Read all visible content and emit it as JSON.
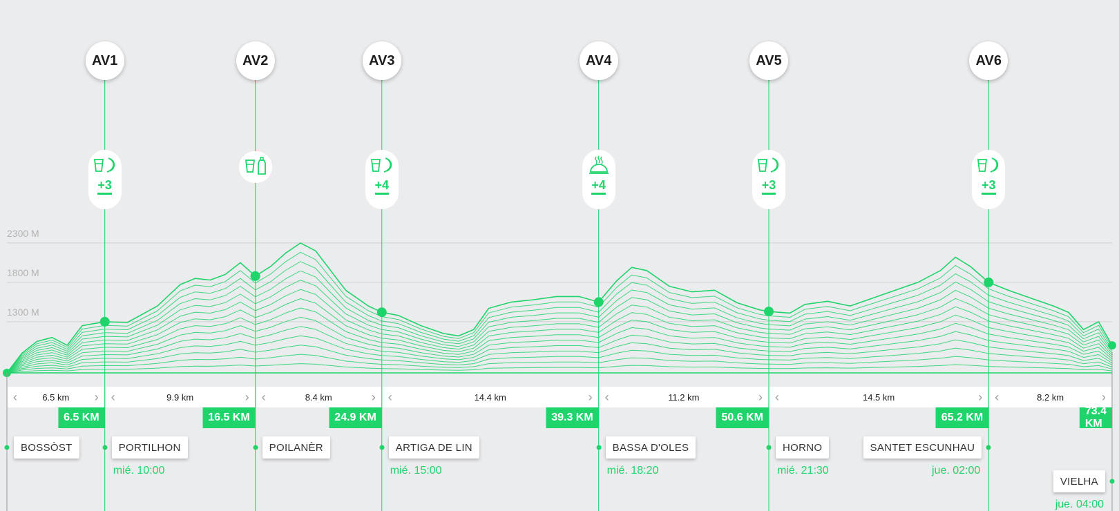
{
  "chart_data": {
    "type": "area",
    "y_ticks": [
      "2300 M",
      "1800 M",
      "1300 M"
    ],
    "y_tick_values": [
      2300,
      1800,
      1300
    ],
    "x_unit": "km",
    "x_max": 73.4,
    "profile_km": [
      0,
      1,
      2,
      3,
      4,
      5,
      6.5,
      8,
      10,
      11.5,
      12.5,
      13.5,
      14.5,
      15.5,
      16.5,
      17.5,
      18.5,
      19.5,
      20.5,
      21.5,
      22.5,
      24,
      24.9,
      26,
      27.5,
      29,
      30,
      31,
      32,
      33.5,
      35,
      36.5,
      38,
      39.3,
      40.5,
      41.5,
      42.5,
      44,
      45.5,
      47,
      48.5,
      50,
      50.6,
      52,
      53,
      54.5,
      56,
      57.5,
      59,
      60.5,
      62,
      63,
      64,
      65.2,
      66.5,
      68,
      69.5,
      70.5,
      71.5,
      72.5,
      73.4
    ],
    "profile_elev": [
      650,
      900,
      1050,
      1100,
      1000,
      1250,
      1300,
      1290,
      1500,
      1770,
      1850,
      1830,
      1900,
      2050,
      1880,
      2000,
      2170,
      2300,
      2200,
      1950,
      1700,
      1500,
      1420,
      1380,
      1250,
      1150,
      1120,
      1200,
      1470,
      1550,
      1580,
      1620,
      1620,
      1550,
      1820,
      1990,
      1950,
      1750,
      1680,
      1700,
      1540,
      1450,
      1430,
      1410,
      1520,
      1560,
      1500,
      1600,
      1700,
      1800,
      1950,
      2120,
      2000,
      1800,
      1700,
      1600,
      1500,
      1420,
      1200,
      1300,
      1000
    ],
    "aid_stations": [
      {
        "id": "AV1",
        "km": 6.5,
        "elev": 1300,
        "bonus": "+3",
        "icons": [
          "drink-icon",
          "banana-icon"
        ]
      },
      {
        "id": "AV2",
        "km": 16.5,
        "elev": 1880,
        "bonus": "",
        "icons": [
          "drink-icon",
          "bottle-icon"
        ]
      },
      {
        "id": "AV3",
        "km": 24.9,
        "elev": 1420,
        "bonus": "+4",
        "icons": [
          "drink-icon",
          "banana-icon"
        ]
      },
      {
        "id": "AV4",
        "km": 39.3,
        "elev": 1550,
        "bonus": "+4",
        "icons": [
          "hot-meal-icon"
        ]
      },
      {
        "id": "AV5",
        "km": 50.6,
        "elev": 1430,
        "bonus": "+3",
        "icons": [
          "drink-icon",
          "banana-icon"
        ]
      },
      {
        "id": "AV6",
        "km": 65.2,
        "elev": 1800,
        "bonus": "+3",
        "icons": [
          "drink-icon",
          "banana-icon"
        ]
      }
    ],
    "segments": [
      {
        "label": "6.5 km",
        "from": 0,
        "to": 6.5
      },
      {
        "label": "9.9 km",
        "from": 6.5,
        "to": 16.5
      },
      {
        "label": "8.4 km",
        "from": 16.5,
        "to": 24.9
      },
      {
        "label": "14.4 km",
        "from": 24.9,
        "to": 39.3
      },
      {
        "label": "11.2 km",
        "from": 39.3,
        "to": 50.6
      },
      {
        "label": "14.5 km",
        "from": 50.6,
        "to": 65.2
      },
      {
        "label": "8.2 km",
        "from": 65.2,
        "to": 73.4
      }
    ],
    "km_marks": [
      {
        "label": "6.5 KM",
        "km": 6.5
      },
      {
        "label": "16.5 KM",
        "km": 16.5
      },
      {
        "label": "24.9 KM",
        "km": 24.9
      },
      {
        "label": "39.3 KM",
        "km": 39.3
      },
      {
        "label": "50.6 KM",
        "km": 50.6
      },
      {
        "label": "65.2 KM",
        "km": 65.2
      },
      {
        "label": "73.4 KM",
        "km": 73.4
      }
    ],
    "places": [
      {
        "name": "BOSSÒST",
        "km": 0,
        "time": "",
        "side": "right"
      },
      {
        "name": "PORTILHON",
        "km": 6.5,
        "time": "mié. 10:00",
        "side": "right"
      },
      {
        "name": "POILANÈR",
        "km": 16.5,
        "time": "",
        "side": "right"
      },
      {
        "name": "ARTIGA DE LIN",
        "km": 24.9,
        "time": "mié. 15:00",
        "side": "right"
      },
      {
        "name": "BASSA D'OLES",
        "km": 39.3,
        "time": "mié. 18:20",
        "side": "right"
      },
      {
        "name": "HORNO",
        "km": 50.6,
        "time": "mié. 21:30",
        "side": "right"
      },
      {
        "name": "SANTET ESCUNHAU",
        "km": 65.2,
        "time": "jue. 02:00",
        "side": "left"
      },
      {
        "name": "VIELHA",
        "km": 73.4,
        "time": "jue. 04:00",
        "side": "left"
      }
    ]
  },
  "colors": {
    "accent": "#1fd46a",
    "grid": "#cfcfcf",
    "label": "#b3b3b3"
  }
}
